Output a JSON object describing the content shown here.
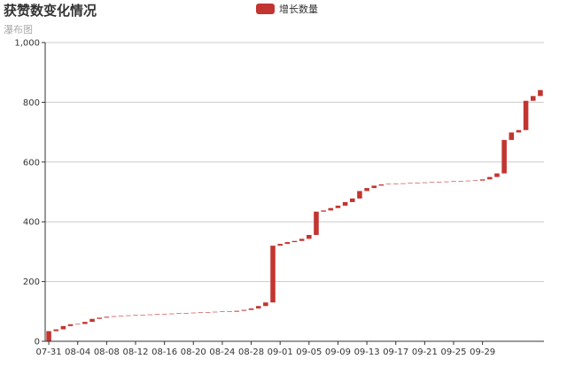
{
  "title": "获赞数变化情况",
  "subtitle": "瀑布图",
  "legend": {
    "label": "增长数量",
    "color": "#c23531"
  },
  "colors": {
    "bar": "#c23531",
    "axis": "#333333",
    "grid": "#cccccc"
  },
  "chart_data": {
    "type": "bar",
    "style": "waterfall",
    "title": "获赞数变化情况",
    "subtitle": "瀑布图",
    "series": [
      {
        "name": "增长数量",
        "values": [
          34,
          6,
          11,
          6,
          1,
          7,
          10,
          4,
          3,
          2,
          1,
          1,
          1,
          1,
          1,
          1,
          1,
          1,
          1,
          1,
          1,
          1,
          1,
          1,
          0,
          1,
          3,
          3,
          5,
          8,
          12,
          190,
          6,
          6,
          4,
          7,
          13,
          78,
          4,
          8,
          8,
          12,
          12,
          25,
          10,
          8,
          4,
          1,
          1,
          1,
          1,
          1,
          1,
          1,
          1,
          1,
          1,
          1,
          1,
          1,
          4,
          8,
          12,
          112,
          25,
          8,
          98,
          16,
          20
        ]
      }
    ],
    "base": [
      0,
      34,
      40,
      51,
      57,
      58,
      65,
      75,
      79,
      82,
      84,
      85,
      86,
      87,
      88,
      89,
      90,
      91,
      92,
      93,
      94,
      95,
      96,
      97,
      98,
      98,
      99,
      102,
      105,
      110,
      118,
      130,
      320,
      326,
      332,
      336,
      343,
      356,
      434,
      438,
      446,
      454,
      466,
      478,
      503,
      513,
      521,
      525,
      526,
      527,
      528,
      529,
      530,
      531,
      532,
      533,
      534,
      535,
      536,
      537,
      538,
      542,
      550,
      562,
      674,
      699,
      707,
      805,
      821
    ],
    "x_start": "07-31",
    "x_ticks": [
      "07-31",
      "08-04",
      "08-08",
      "08-12",
      "08-16",
      "08-20",
      "08-24",
      "08-28",
      "09-01",
      "09-05",
      "09-09",
      "09-13",
      "09-17",
      "09-21",
      "09-25",
      "09-29"
    ],
    "y_ticks": [
      "0",
      "200",
      "400",
      "600",
      "800",
      "1,000"
    ],
    "ylim": [
      0,
      1000
    ],
    "grid": true,
    "legend_position": "top-center"
  }
}
